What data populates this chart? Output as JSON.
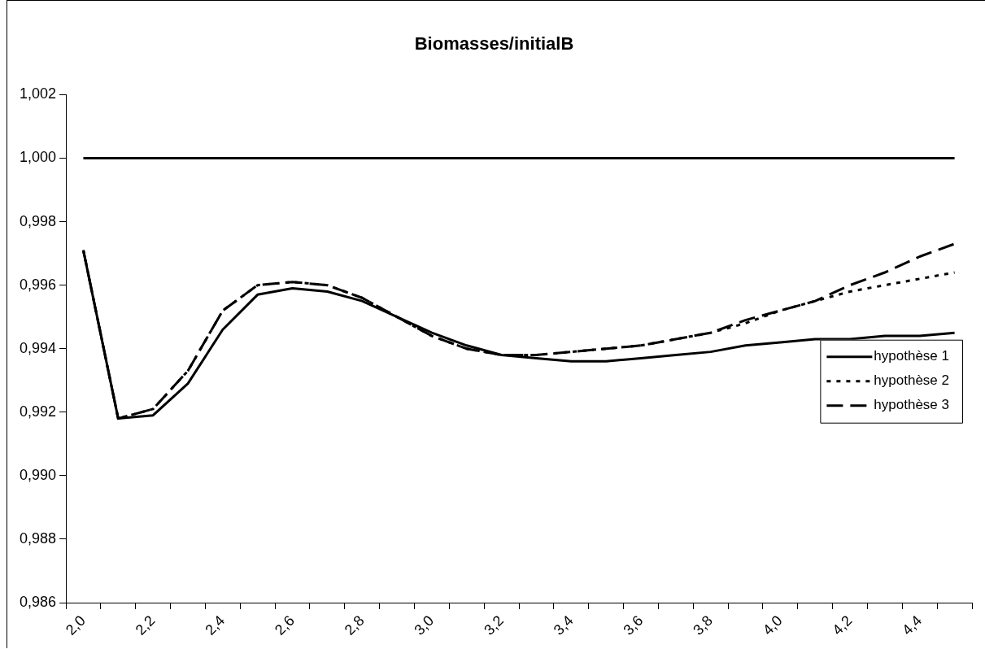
{
  "chart_data": {
    "type": "line",
    "title": "Biomasses/initialB",
    "categories": [
      "2,0",
      null,
      "2,2",
      null,
      "2,4",
      null,
      "2,6",
      null,
      "2,8",
      null,
      "3,0",
      null,
      "3,2",
      null,
      "3,4",
      null,
      "3,6",
      null,
      "3,8",
      null,
      "4,0",
      null,
      "4,2",
      null,
      "4,4",
      null
    ],
    "series": [
      {
        "color": "#000000",
        "line_style": "solid",
        "values": [
          1,
          1,
          1,
          1,
          1,
          1,
          1,
          1,
          1,
          1,
          1,
          1,
          1,
          1,
          1,
          1,
          1,
          1,
          1,
          1,
          1,
          1,
          1,
          1,
          1,
          1
        ]
      },
      {
        "name": "hypothèse 1",
        "color": "#000000",
        "line_style": "solid",
        "values": [
          0.9971,
          0.9918,
          0.9919,
          0.9929,
          0.9946,
          0.9957,
          0.9959,
          0.9958,
          0.9955,
          0.995,
          0.9945,
          0.9941,
          0.9938,
          0.9937,
          0.9936,
          0.9936,
          0.9937,
          0.9938,
          0.9939,
          0.9941,
          0.9942,
          0.9943,
          0.9943,
          0.9944,
          0.9944,
          0.9945
        ]
      },
      {
        "name": "hypothèse 2",
        "color": "#000000",
        "line_style": "dotted",
        "values": [
          0.9971,
          0.9918,
          0.9921,
          0.9933,
          0.9952,
          0.996,
          0.9961,
          0.996,
          0.9956,
          0.995,
          0.9944,
          0.994,
          0.9938,
          0.9938,
          0.9939,
          0.994,
          0.9941,
          0.9943,
          0.9945,
          0.9948,
          0.9952,
          0.9955,
          0.9958,
          0.996,
          0.9962,
          0.9964
        ]
      },
      {
        "name": "hypothèse 3",
        "color": "#000000",
        "line_style": "dashed",
        "values": [
          0.9971,
          0.9918,
          0.9921,
          0.9933,
          0.9952,
          0.996,
          0.9961,
          0.996,
          0.9956,
          0.995,
          0.9944,
          0.994,
          0.9938,
          0.9938,
          0.9939,
          0.994,
          0.9941,
          0.9943,
          0.9945,
          0.9949,
          0.9952,
          0.9955,
          0.996,
          0.9964,
          0.9969,
          0.9973
        ]
      }
    ],
    "ylim": [
      0.986,
      1.002
    ],
    "yticks": [
      {
        "value": 0.986,
        "label": "0,986"
      },
      {
        "value": 0.988,
        "label": "0,988"
      },
      {
        "value": 0.99,
        "label": "0,990"
      },
      {
        "value": 0.992,
        "label": "0,992"
      },
      {
        "value": 0.994,
        "label": "0,994"
      },
      {
        "value": 0.996,
        "label": "0,996"
      },
      {
        "value": 0.998,
        "label": "0,998"
      },
      {
        "value": 1,
        "label": "1,000"
      },
      {
        "value": 1.002,
        "label": "1,002"
      }
    ],
    "grid": false,
    "legend": "right",
    "marker": "none"
  }
}
